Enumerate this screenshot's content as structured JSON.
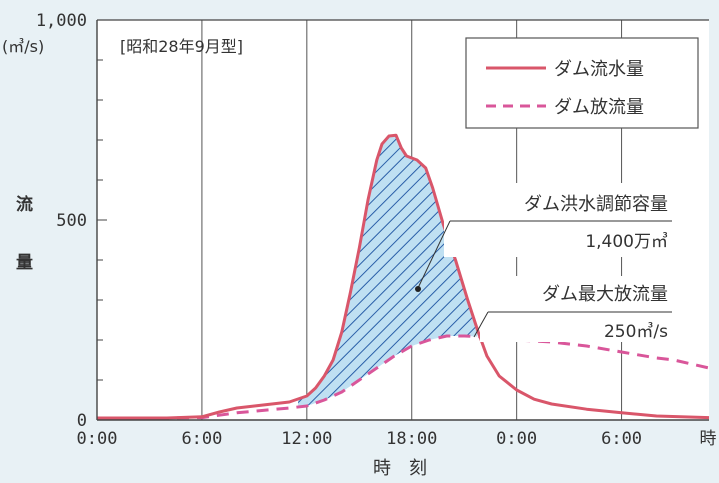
{
  "chart_data": {
    "type": "line",
    "title": "[昭和28年9月型]",
    "ylabel_chars": [
      "流",
      "量"
    ],
    "yunit": "(㎥/s)",
    "xlabel": "時　刻",
    "ylim": [
      0,
      1000
    ],
    "y_ticks": [
      {
        "value": 0,
        "label": "0"
      },
      {
        "value": 500,
        "label": "500"
      },
      {
        "value": 1000,
        "label": "1,000"
      }
    ],
    "x_ticks": [
      {
        "value": 0,
        "label": "0:00"
      },
      {
        "value": 6,
        "label": "6:00"
      },
      {
        "value": 12,
        "label": "12:00"
      },
      {
        "value": 18,
        "label": "18:00"
      },
      {
        "value": 24,
        "label": "0:00"
      },
      {
        "value": 30,
        "label": "6:00"
      }
    ],
    "x_end_label": "時",
    "xlim": [
      0,
      35
    ],
    "vgrid": [
      6,
      12,
      18,
      24,
      30
    ],
    "series": [
      {
        "name": "ダム流水量",
        "color": "#d9566a",
        "dash": false,
        "points": [
          [
            0,
            5
          ],
          [
            4,
            5
          ],
          [
            6,
            8
          ],
          [
            7,
            20
          ],
          [
            8,
            30
          ],
          [
            9,
            35
          ],
          [
            10,
            40
          ],
          [
            11,
            45
          ],
          [
            12,
            60
          ],
          [
            12.5,
            80
          ],
          [
            13,
            110
          ],
          [
            13.5,
            150
          ],
          [
            14,
            220
          ],
          [
            14.5,
            320
          ],
          [
            15,
            430
          ],
          [
            15.5,
            550
          ],
          [
            16,
            650
          ],
          [
            16.3,
            690
          ],
          [
            16.7,
            710
          ],
          [
            17.1,
            712
          ],
          [
            17.4,
            680
          ],
          [
            17.7,
            660
          ],
          [
            18.3,
            650
          ],
          [
            18.8,
            630
          ],
          [
            19.2,
            580
          ],
          [
            19.8,
            490
          ],
          [
            20.5,
            400
          ],
          [
            21.2,
            300
          ],
          [
            21.8,
            220
          ],
          [
            22.3,
            160
          ],
          [
            23,
            110
          ],
          [
            24,
            75
          ],
          [
            25,
            52
          ],
          [
            26,
            40
          ],
          [
            28,
            27
          ],
          [
            30,
            18
          ],
          [
            32,
            10
          ],
          [
            35,
            6
          ]
        ]
      },
      {
        "name": "ダム放流量",
        "color": "#d9569a",
        "dash": true,
        "points": [
          [
            0,
            5
          ],
          [
            4,
            5
          ],
          [
            6,
            6
          ],
          [
            7,
            12
          ],
          [
            8,
            18
          ],
          [
            9,
            22
          ],
          [
            10,
            26
          ],
          [
            11,
            30
          ],
          [
            12,
            35
          ],
          [
            13,
            50
          ],
          [
            14,
            70
          ],
          [
            15,
            100
          ],
          [
            16,
            130
          ],
          [
            17,
            160
          ],
          [
            18,
            185
          ],
          [
            19,
            200
          ],
          [
            20,
            210
          ],
          [
            21,
            210
          ],
          [
            22,
            208
          ],
          [
            23,
            205
          ],
          [
            24,
            200
          ],
          [
            26,
            195
          ],
          [
            28,
            185
          ],
          [
            30,
            170
          ],
          [
            32,
            155
          ],
          [
            33,
            150
          ],
          [
            35,
            130
          ]
        ]
      }
    ],
    "annotations": [
      {
        "name": "dam-flood-control-capacity",
        "line1": "ダム洪水調節容量",
        "line2": "1,400万㎥"
      },
      {
        "name": "dam-max-discharge",
        "line1": "ダム最大放流量",
        "line2": "250㎥/s"
      }
    ],
    "legend_position": "top-right",
    "grid": true
  }
}
